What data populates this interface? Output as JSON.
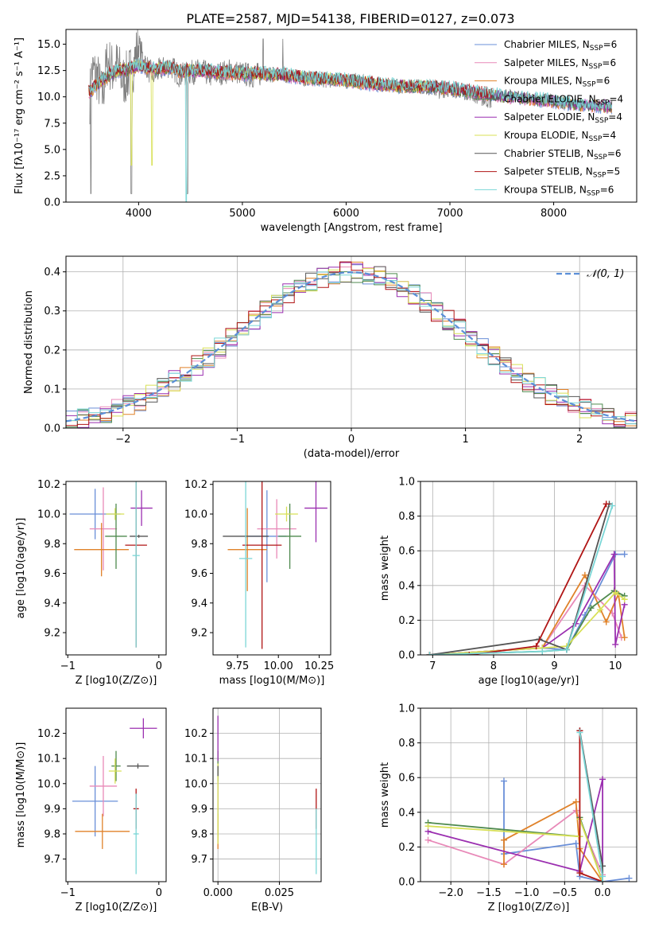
{
  "figure_title": "PLATE=2587, MJD=54138, FIBERID=0127, z=0.073",
  "model_colors": [
    "#6a8fd8",
    "#e889b8",
    "#e0822a",
    "#4f8a4f",
    "#9b2fb0",
    "#d8e056",
    "#555555",
    "#b01515",
    "#7ad6d6"
  ],
  "chart_data": [
    {
      "id": "spectrum",
      "type": "line",
      "title": "PLATE=2587, MJD=54138, FIBERID=0127, z=0.073",
      "xlabel": "wavelength [Angstrom, rest frame]",
      "ylabel": "Flux [fλ10⁻¹⁷ erg cm⁻² s⁻¹ A⁻¹]",
      "xlim": [
        3300,
        8800
      ],
      "ylim": [
        0,
        16.4
      ],
      "xticks": [
        4000,
        5000,
        6000,
        7000,
        8000
      ],
      "yticks": [
        0.0,
        2.5,
        5.0,
        7.5,
        10.0,
        12.5,
        15.0
      ],
      "legend_position": "top-right",
      "grid": false,
      "observed": {
        "x": [
          3530,
          3550,
          3600,
          3650,
          3700,
          3750,
          3800,
          3850,
          3900,
          3950,
          4000,
          4050,
          4100,
          4150,
          4200,
          4300,
          4400,
          4500,
          4600,
          4700,
          4800,
          4900,
          5000,
          5100,
          5200,
          5300,
          5400,
          5500,
          5600,
          5700,
          5800,
          5900,
          6000,
          6100,
          6200,
          6300,
          6400,
          6500,
          6600,
          6700,
          6800,
          6900,
          7000,
          7100,
          7200,
          7300,
          7400
        ],
        "y": [
          10,
          12.5,
          12,
          10,
          13.5,
          12.5,
          13,
          11.5,
          12,
          13,
          15,
          13.5,
          12.5,
          12,
          12.5,
          13,
          12,
          12.3,
          12.5,
          12,
          12.3,
          12.5,
          12.2,
          12,
          12.2,
          12,
          12,
          11.9,
          11.6,
          11.8,
          11.5,
          11.6,
          11.4,
          11.6,
          11.3,
          11.3,
          11,
          11,
          11,
          11,
          10.8,
          10.5,
          10.7,
          10.5,
          10.3,
          9.8,
          9.5
        ]
      },
      "model": {
        "x": [
          3530,
          3600,
          3700,
          3800,
          3900,
          4000,
          4100,
          4200,
          4300,
          4400,
          4500,
          4600,
          4800,
          5000,
          5200,
          5400,
          5600,
          5800,
          6000,
          6200,
          6400,
          6600,
          6800,
          7000,
          7200,
          7400,
          7600,
          7800,
          8000,
          8200,
          8400,
          8550
        ],
        "y": [
          10.5,
          11.2,
          12,
          12.5,
          12.6,
          13,
          12.7,
          12.6,
          12.8,
          12.4,
          12.5,
          12.5,
          12.3,
          12.2,
          12.2,
          12.1,
          11.8,
          11.7,
          11.6,
          11.3,
          11.1,
          11,
          11,
          10.8,
          10.5,
          10.2,
          10,
          9.8,
          9.6,
          9.3,
          9.2,
          9.1
        ]
      },
      "series": [
        {
          "name": "Chabrier MILES, NSSP=6",
          "label_main": "Chabrier MILES, N",
          "label_sub": "SSP",
          "label_tail": "=6"
        },
        {
          "name": "Salpeter MILES, NSSP=6",
          "label_main": "Salpeter MILES, N",
          "label_sub": "SSP",
          "label_tail": "=6"
        },
        {
          "name": "Kroupa MILES, NSSP=6",
          "label_main": "Kroupa MILES, N",
          "label_sub": "SSP",
          "label_tail": "=6"
        },
        {
          "name": "Chabrier ELODIE, NSSP=4",
          "label_main": "Chabrier ELODIE, N",
          "label_sub": "SSP",
          "label_tail": "=4"
        },
        {
          "name": "Salpeter ELODIE, NSSP=4",
          "label_main": "Salpeter ELODIE, N",
          "label_sub": "SSP",
          "label_tail": "=4"
        },
        {
          "name": "Kroupa ELODIE, NSSP=4",
          "label_main": "Kroupa ELODIE, N",
          "label_sub": "SSP",
          "label_tail": "=4"
        },
        {
          "name": "Chabrier STELIB, NSSP=6",
          "label_main": "Chabrier STELIB, N",
          "label_sub": "SSP",
          "label_tail": "=6"
        },
        {
          "name": "Salpeter STELIB, NSSP=5",
          "label_main": "Salpeter STELIB, N",
          "label_sub": "SSP",
          "label_tail": "=5"
        },
        {
          "name": "Kroupa STELIB, NSSP=6",
          "label_main": "Kroupa STELIB, N",
          "label_sub": "SSP",
          "label_tail": "=6"
        }
      ]
    },
    {
      "id": "residuals",
      "type": "histogram",
      "xlabel": "(data-model)/error",
      "ylabel": "Normed distribution",
      "xlim": [
        -2.5,
        2.5
      ],
      "ylim": [
        0,
        0.44
      ],
      "xticks": [
        -2,
        -1,
        0,
        1,
        2
      ],
      "yticks": [
        0.0,
        0.1,
        0.2,
        0.3,
        0.4
      ],
      "grid": true,
      "legend_position": "top-right",
      "reference_curve": {
        "name": "𝒩(0, 1)",
        "mean": 0,
        "sigma": 1
      },
      "bin_edges_start": -2.5,
      "bin_width": 0.1
    },
    {
      "id": "age_vs_metallicity",
      "type": "errorbar",
      "xlabel": "Z [log10(Z/Z⊙)]",
      "ylabel": "age  [log10(age/yr)]",
      "xlim": [
        -1.02,
        0.08
      ],
      "ylim": [
        9.05,
        10.22
      ],
      "xticks": [
        -1,
        0
      ],
      "yticks": [
        9.2,
        9.4,
        9.6,
        9.8,
        10.0,
        10.2
      ],
      "points": [
        {
          "x": -0.7,
          "xerr": 0.28,
          "y": 10.0,
          "yerr": 0.17
        },
        {
          "x": -0.61,
          "xerr": 0.15,
          "y": 9.9,
          "yerr": 0.28
        },
        {
          "x": -0.63,
          "xerr": 0.3,
          "y": 9.76,
          "yerr": 0.18
        },
        {
          "x": -0.47,
          "xerr": 0.12,
          "y": 9.85,
          "yerr": 0.22
        },
        {
          "x": -0.19,
          "xerr": 0.12,
          "y": 10.04,
          "yerr": 0.12
        },
        {
          "x": -0.48,
          "xerr": 0.1,
          "y": 10.0,
          "yerr": 0.04
        },
        {
          "x": -0.22,
          "xerr": 0.1,
          "y": 9.85,
          "yerr": 0.01
        },
        {
          "x": -0.25,
          "xerr": 0.12,
          "y": 9.79,
          "yerr": 0.69
        },
        {
          "x": -0.25,
          "xerr": 0.04,
          "y": 9.72,
          "yerr": 0.62
        }
      ]
    },
    {
      "id": "age_vs_mass",
      "type": "errorbar",
      "xlabel": "mass [log10(M/M⊙)]",
      "ylabel": "",
      "xlim": [
        9.6,
        10.32
      ],
      "ylim": [
        9.05,
        10.22
      ],
      "xticks": [
        9.75,
        10.0,
        10.25
      ],
      "yticks": [
        9.2,
        9.4,
        9.6,
        9.8,
        10.0,
        10.2
      ],
      "points": [
        {
          "x": 9.93,
          "xerr": 0.12,
          "y": 9.85,
          "yerr": 0.31
        },
        {
          "x": 9.99,
          "xerr": 0.12,
          "y": 9.9,
          "yerr": 0.2
        },
        {
          "x": 9.81,
          "xerr": 0.12,
          "y": 9.76,
          "yerr": 0.28
        },
        {
          "x": 10.07,
          "xerr": 0.07,
          "y": 9.85,
          "yerr": 0.22
        },
        {
          "x": 10.23,
          "xerr": 0.07,
          "y": 10.04,
          "yerr": 0.23
        },
        {
          "x": 10.05,
          "xerr": 0.07,
          "y": 10.0,
          "yerr": 0.05
        },
        {
          "x": 9.8,
          "xerr": 0.14,
          "y": 9.85,
          "yerr": 0.01
        },
        {
          "x": 9.9,
          "xerr": 0.12,
          "y": 9.79,
          "yerr": 0.7
        },
        {
          "x": 9.8,
          "xerr": 0.04,
          "y": 9.7,
          "yerr": 0.6
        }
      ]
    },
    {
      "id": "weight_vs_age",
      "type": "line",
      "xlabel": "age  [log10(age/yr)]",
      "ylabel": "mass weight",
      "xlim": [
        6.8,
        10.35
      ],
      "ylim": [
        0,
        1.0
      ],
      "xticks": [
        7,
        8,
        9,
        10
      ],
      "yticks": [
        0.0,
        0.2,
        0.4,
        0.6,
        0.8,
        1.0
      ],
      "grid": true,
      "series": [
        {
          "x": [
            6.95,
            8.8,
            9.2,
            9.5,
            10.0,
            10.15
          ],
          "y": [
            0.0,
            0.04,
            0.03,
            0.23,
            0.58,
            0.58
          ]
        },
        {
          "x": [
            6.95,
            8.8,
            9.5,
            9.95,
            10.1
          ],
          "y": [
            0.0,
            0.04,
            0.4,
            0.24,
            0.1
          ]
        },
        {
          "x": [
            6.95,
            8.8,
            9.5,
            9.85,
            10.05,
            10.15
          ],
          "y": [
            0.0,
            0.04,
            0.46,
            0.19,
            0.35,
            0.1
          ]
        },
        {
          "x": [
            6.95,
            8.8,
            9.2,
            9.6,
            9.98,
            10.15
          ],
          "y": [
            0.0,
            0.02,
            0.03,
            0.27,
            0.37,
            0.34
          ]
        },
        {
          "x": [
            6.95,
            8.8,
            9.35,
            9.98,
            10.0,
            10.15
          ],
          "y": [
            0.0,
            0.04,
            0.18,
            0.58,
            0.06,
            0.29
          ]
        },
        {
          "x": [
            6.95,
            8.8,
            9.2,
            9.75,
            10.0,
            10.15
          ],
          "y": [
            0.0,
            0.04,
            0.05,
            0.26,
            0.36,
            0.32
          ]
        },
        {
          "x": [
            6.95,
            8.75,
            9.2,
            9.9
          ],
          "y": [
            0.0,
            0.09,
            0.03,
            0.87
          ]
        },
        {
          "x": [
            6.95,
            7.6,
            8.7,
            9.85
          ],
          "y": [
            0.0,
            0.0,
            0.05,
            0.87
          ]
        },
        {
          "x": [
            6.95,
            8.8,
            9.2,
            9.95
          ],
          "y": [
            0.0,
            0.02,
            0.03,
            0.86
          ]
        }
      ]
    },
    {
      "id": "mass_vs_metallicity",
      "type": "errorbar",
      "xlabel": "Z [log10(Z/Z⊙)]",
      "ylabel": "mass [log10(M/M⊙)]",
      "xlim": [
        -1.02,
        0.08
      ],
      "ylim": [
        9.61,
        10.3
      ],
      "xticks": [
        -1,
        0
      ],
      "yticks": [
        9.7,
        9.8,
        9.9,
        10.0,
        10.1,
        10.2
      ],
      "points": [
        {
          "x": -0.7,
          "xerr": 0.25,
          "y": 9.93,
          "yerr": 0.14
        },
        {
          "x": -0.61,
          "xerr": 0.15,
          "y": 9.99,
          "yerr": 0.12
        },
        {
          "x": -0.62,
          "xerr": 0.3,
          "y": 9.81,
          "yerr": 0.07
        },
        {
          "x": -0.47,
          "xerr": 0.05,
          "y": 10.07,
          "yerr": 0.06
        },
        {
          "x": -0.17,
          "xerr": 0.15,
          "y": 10.22,
          "yerr": 0.04
        },
        {
          "x": -0.48,
          "xerr": 0.07,
          "y": 10.05,
          "yerr": 0.05
        },
        {
          "x": -0.23,
          "xerr": 0.12,
          "y": 10.07,
          "yerr": 0.01
        },
        {
          "x": -0.25,
          "xerr": 0.03,
          "y": 9.9,
          "yerr": 0.08
        },
        {
          "x": -0.25,
          "xerr": 0.03,
          "y": 9.8,
          "yerr": 0.16
        }
      ]
    },
    {
      "id": "mass_vs_ebv",
      "type": "errorbar",
      "xlabel": "E(B-V)",
      "ylabel": "",
      "xlim": [
        -0.002,
        0.042
      ],
      "ylim": [
        9.61,
        10.3
      ],
      "xticks": [
        0.0,
        0.025
      ],
      "xtick_labels": [
        "0.000",
        "0.025"
      ],
      "yticks": [
        9.7,
        9.8,
        9.9,
        10.0,
        10.1,
        10.2
      ],
      "grid": true,
      "points": [
        {
          "x": 0.0,
          "xerr": 0,
          "y": 9.93,
          "yerr": 0.14
        },
        {
          "x": 0.0,
          "xerr": 0,
          "y": 9.99,
          "yerr": 0.1
        },
        {
          "x": 0.0,
          "xerr": 0,
          "y": 9.81,
          "yerr": 0.07
        },
        {
          "x": 0.0,
          "xerr": 0,
          "y": 10.07,
          "yerr": 0.06
        },
        {
          "x": 0.0,
          "xerr": 0,
          "y": 10.18,
          "yerr": 0.09
        },
        {
          "x": 0.0,
          "xerr": 0,
          "y": 9.92,
          "yerr": 0.16
        },
        {
          "x": 0.0,
          "xerr": 0,
          "y": 10.05,
          "yerr": 0.02
        },
        {
          "x": 0.04,
          "xerr": 0,
          "y": 9.9,
          "yerr": 0.08
        },
        {
          "x": 0.04,
          "xerr": 0,
          "y": 9.77,
          "yerr": 0.13
        }
      ]
    },
    {
      "id": "weight_vs_metallicity",
      "type": "line",
      "xlabel": "Z [log10(Z/Z⊙)]",
      "ylabel": "mass weight",
      "xlim": [
        -2.4,
        0.45
      ],
      "ylim": [
        0,
        1.0
      ],
      "xticks": [
        -2.0,
        -1.5,
        -1.0,
        -0.5,
        0.0
      ],
      "yticks": [
        0.0,
        0.2,
        0.4,
        0.6,
        0.8,
        1.0
      ],
      "grid": true,
      "series": [
        {
          "x": [
            -1.3,
            -1.3,
            -1.3,
            -0.35,
            -0.3,
            0.0,
            0.35
          ],
          "y": [
            0.58,
            0.24,
            0.16,
            0.22,
            0.03,
            0.0,
            0.02
          ]
        },
        {
          "x": [
            -2.3,
            -1.3,
            -0.35,
            0.0
          ],
          "y": [
            0.24,
            0.1,
            0.41,
            0.04
          ]
        },
        {
          "x": [
            -1.3,
            -1.3,
            -0.35,
            -0.3,
            0.0
          ],
          "y": [
            0.1,
            0.24,
            0.46,
            0.19,
            0.0
          ]
        },
        {
          "x": [
            -2.3,
            -0.3,
            -0.3,
            0.0
          ],
          "y": [
            0.34,
            0.26,
            0.37,
            0.0
          ]
        },
        {
          "x": [
            -2.3,
            -0.3,
            0.0,
            0.0
          ],
          "y": [
            0.29,
            0.06,
            0.59,
            0.0
          ]
        },
        {
          "x": [
            -2.3,
            -0.3,
            -0.3,
            0.0
          ],
          "y": [
            0.32,
            0.26,
            0.36,
            0.0
          ]
        },
        {
          "x": [
            -0.3,
            0.0,
            0.0
          ],
          "y": [
            0.87,
            0.09,
            0.0
          ]
        },
        {
          "x": [
            -0.3,
            -0.3,
            0.0
          ],
          "y": [
            0.87,
            0.05,
            0.0
          ]
        },
        {
          "x": [
            -0.3,
            0.0,
            0.0
          ],
          "y": [
            0.86,
            0.03,
            0.0
          ]
        }
      ]
    }
  ]
}
